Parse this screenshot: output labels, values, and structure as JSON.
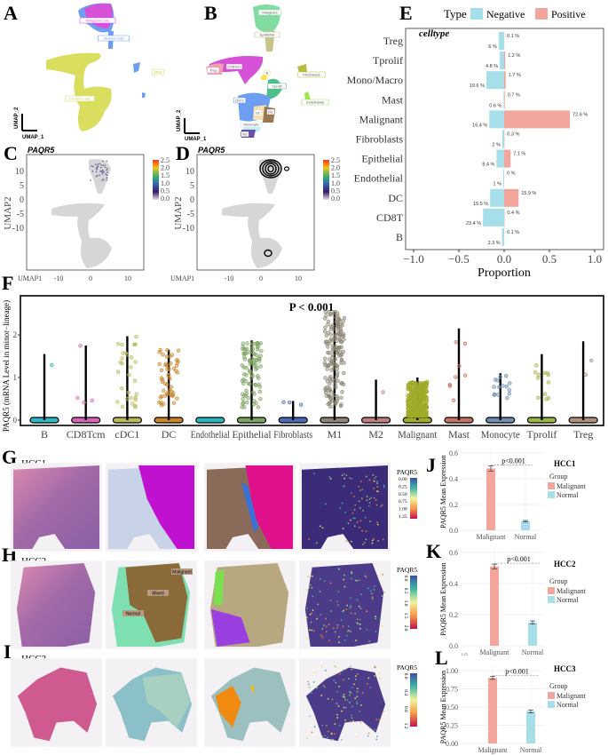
{
  "panel_letters": {
    "A": "A",
    "B": "B",
    "C": "C",
    "D": "D",
    "E": "E",
    "F": "F",
    "G": "G",
    "H": "H",
    "I": "I",
    "J": "J",
    "K": "K",
    "L": "L"
  },
  "umap_a": {
    "labels": [
      "Malignant cells",
      "Stromal cells",
      "Immune cells",
      "Mast"
    ],
    "axis_x": "UMAP_1",
    "axis_y": "UMAP_2",
    "colors": {
      "malignant": "#d651d8",
      "stromal": "#6e9ef2",
      "immune": "#dade5e"
    }
  },
  "umap_b": {
    "labels": [
      "Malignant",
      "Epithelial",
      "CD8Tcm",
      "Treg",
      "B",
      "Fibroblasts",
      "Tprolif",
      "Endothelial",
      "cDC1",
      "DC",
      "M1",
      "Monocyte",
      "M2"
    ],
    "axis_x": "UMAP_1",
    "axis_y": "UMAP_2"
  },
  "feature_c": {
    "title": "PAQR5",
    "ylabel": "UMAP2",
    "xlabel": "UMAP1",
    "yticks": [
      "10",
      "5",
      "0",
      "-5",
      "-10"
    ],
    "xticks": [
      "-10",
      "0",
      "10"
    ],
    "colorbar_ticks": [
      "2.5",
      "2.0",
      "1.5",
      "1.0",
      "0.5",
      "0.0"
    ]
  },
  "feature_d": {
    "title": "PAQR5",
    "ylabel": "UMAP2",
    "xlabel": "UMAP1",
    "yticks": [
      "10",
      "5",
      "0",
      "-5",
      "-10"
    ],
    "xticks": [
      "-10",
      "0",
      "10"
    ],
    "colorbar_ticks": [
      "2.5",
      "2.0",
      "1.5",
      "1.0",
      "0.5",
      "0.0"
    ]
  },
  "spatial": {
    "rows": [
      {
        "label": "HCC1"
      },
      {
        "label": "HCC2"
      },
      {
        "label": "HCC3"
      }
    ],
    "region_labels": [
      "Malignant",
      "Mixed",
      "Normal"
    ],
    "colorbars": [
      {
        "title": "PAQR5",
        "ticks": [
          "0.00",
          "0.25",
          "0.50",
          "0.75",
          "1.00",
          "1.25"
        ]
      },
      {
        "title": "PAQR5",
        "ticks": [
          "0.0",
          "0.5",
          "1.0",
          "1.5",
          "2.0"
        ]
      },
      {
        "title": "PAQR5",
        "ticks": [
          "0.0",
          "0.4",
          "0.8",
          "1.2"
        ]
      }
    ],
    "stray_label": "1.25"
  },
  "chart_data": [
    {
      "id": "E",
      "type": "bar",
      "orientation": "horizontal",
      "ylabel": "celltype",
      "xlabel": "Proportion",
      "legend_title": "Type",
      "legend_placement": "top",
      "xlim": [
        -1.0,
        1.0
      ],
      "xticks": [
        "−1.0",
        "−0.5",
        "0.0",
        "0.5",
        "1.0"
      ],
      "categories": [
        "Treg",
        "Tprolif",
        "Mono/Macro",
        "Mast",
        "Malignant",
        "Fibroblasts",
        "Epithelial",
        "Endothelial",
        "DC",
        "CD8T",
        "B"
      ],
      "series": [
        {
          "name": "Negative",
          "color": "#a6dfea",
          "values": [
            -0.06,
            -0.048,
            -0.196,
            -0.006,
            -0.164,
            -0.02,
            -0.084,
            -0.01,
            -0.155,
            -0.234,
            -0.023
          ],
          "labels": [
            "6 %",
            "4.8 %",
            "19.6 %",
            "0.6 %",
            "16.4 %",
            "2 %",
            "8.4 %",
            "1 %",
            "15.5 %",
            "23.4 %",
            "2.3 %"
          ]
        },
        {
          "name": "Positive",
          "color": "#f2a59a",
          "values": [
            0.001,
            0.012,
            0.017,
            0.007,
            0.726,
            0.003,
            0.071,
            0.0,
            0.159,
            0.004,
            0.001
          ],
          "labels": [
            "0.1 %",
            "1.2 %",
            "1.7 %",
            "0.7 %",
            "72.6 %",
            "0.3 %",
            "7.1 %",
            "0 %",
            "15.9 %",
            "0.4 %",
            "0.1 %"
          ]
        }
      ]
    },
    {
      "id": "F",
      "type": "scatter",
      "subtype": "violin-jitter",
      "title": "P < 0.001",
      "ylabel": "PAQR5 (mRNA Level in minor−lineage)",
      "ylim": [
        0,
        2.7
      ],
      "yticks": [
        "0",
        "1",
        "2"
      ],
      "categories": [
        "B",
        "CD8Tcm",
        "cDC1",
        "DC",
        "Endothelial",
        "Epithelial",
        "Fibroblasts",
        "M1",
        "M2",
        "Malignant",
        "Mast",
        "Monocyte",
        "Tprolif",
        "Treg"
      ],
      "max_values": [
        1.55,
        1.75,
        1.97,
        1.65,
        0.0,
        1.87,
        0.45,
        2.55,
        0.95,
        1.0,
        2.15,
        1.1,
        1.55,
        1.85
      ],
      "colors": [
        "#2fb8c6",
        "#d664bd",
        "#b8bb5c",
        "#c8862c",
        "#2bb6c2",
        "#7ea463",
        "#4b6bb8",
        "#8c8474",
        "#c27e7e",
        "#a0ab2a",
        "#c47460",
        "#6d8db3",
        "#9db545",
        "#b38f7c"
      ]
    },
    {
      "id": "J",
      "type": "bar",
      "title": "HCC1",
      "ylabel": "PAQR5 Mean Expression",
      "ylim": [
        0,
        0.6
      ],
      "yticks": [
        "0.0",
        "0.2",
        "0.4",
        "0.6"
      ],
      "categories": [
        "Malignant",
        "Normal"
      ],
      "values": [
        0.48,
        0.07
      ],
      "errors": [
        0.02,
        0.006
      ],
      "colors": [
        "#f4a69c",
        "#a6dfea"
      ],
      "annotation": "p<0.001",
      "legend_title": "Group",
      "legend": [
        "Malignant",
        "Normal"
      ],
      "legend_placement": "right"
    },
    {
      "id": "K",
      "type": "bar",
      "title": "HCC2",
      "ylabel": "PAQR5 Mean Expression",
      "ylim": [
        0,
        0.6
      ],
      "yticks": [
        "0.0",
        "0.2",
        "0.4",
        "0.6"
      ],
      "categories": [
        "Malignant",
        "Normal"
      ],
      "values": [
        0.51,
        0.15
      ],
      "errors": [
        0.015,
        0.01
      ],
      "colors": [
        "#f4a69c",
        "#a6dfea"
      ],
      "annotation": "p<0.001",
      "legend_title": "Group",
      "legend": [
        "Malignant",
        "Normal"
      ],
      "legend_placement": "right"
    },
    {
      "id": "L",
      "type": "bar",
      "title": "HCC3",
      "ylabel": "PAQR5 Mean Expression",
      "ylim": [
        0,
        1.0
      ],
      "yticks": [
        "0.00",
        "0.25",
        "0.50",
        "0.75",
        "1.00"
      ],
      "categories": [
        "Malignant",
        "Normal"
      ],
      "values": [
        0.9,
        0.44
      ],
      "errors": [
        0.02,
        0.02
      ],
      "colors": [
        "#f4a69c",
        "#a6dfea"
      ],
      "annotation": "p<0.001",
      "legend_title": "Group",
      "legend": [
        "Malignant",
        "Normal"
      ],
      "legend_placement": "right"
    }
  ]
}
